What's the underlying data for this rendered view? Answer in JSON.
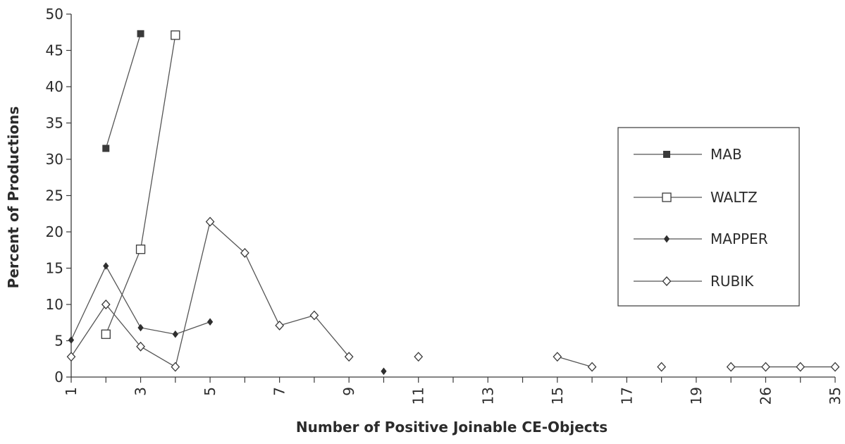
{
  "chart_data": {
    "type": "line",
    "xlabel": "Number of Positive Joinable CE-Objects",
    "ylabel": "Percent of Productions",
    "ylim": [
      0,
      50
    ],
    "yticks": [
      0,
      5,
      10,
      15,
      20,
      25,
      30,
      35,
      40,
      45,
      50
    ],
    "x_categories": [
      "1",
      "2",
      "3",
      "4",
      "5",
      "6",
      "7",
      "8",
      "9",
      "10",
      "11",
      "12",
      "13",
      "14",
      "15",
      "16",
      "17",
      "18",
      "19",
      "20",
      "26",
      "30",
      "35"
    ],
    "x_tick_labels_shown": [
      "1",
      "3",
      "5",
      "7",
      "9",
      "11",
      "13",
      "15",
      "17",
      "19",
      "26",
      "35"
    ],
    "grid": false,
    "legend_position": "right",
    "series": [
      {
        "name": "MAB",
        "marker": "filled-square",
        "color": "#555555",
        "segments": [
          [
            {
              "x": "2",
              "y": 31.5
            },
            {
              "x": "3",
              "y": 47.3
            }
          ]
        ]
      },
      {
        "name": "WALTZ",
        "marker": "open-square",
        "color": "#555555",
        "segments": [
          [
            {
              "x": "2",
              "y": 5.9
            },
            {
              "x": "3",
              "y": 17.6
            },
            {
              "x": "4",
              "y": 47.1
            }
          ]
        ]
      },
      {
        "name": "MAPPER",
        "marker": "filled-diamond",
        "color": "#555555",
        "segments": [
          [
            {
              "x": "1",
              "y": 5.1
            },
            {
              "x": "2",
              "y": 15.3
            },
            {
              "x": "3",
              "y": 6.8
            },
            {
              "x": "4",
              "y": 5.9
            },
            {
              "x": "5",
              "y": 7.6
            }
          ],
          [
            {
              "x": "10",
              "y": 0.8
            }
          ]
        ]
      },
      {
        "name": "RUBIK",
        "marker": "open-diamond",
        "color": "#555555",
        "segments": [
          [
            {
              "x": "1",
              "y": 2.8
            },
            {
              "x": "2",
              "y": 10.0
            },
            {
              "x": "3",
              "y": 4.2
            },
            {
              "x": "4",
              "y": 1.4
            },
            {
              "x": "5",
              "y": 21.4
            },
            {
              "x": "6",
              "y": 17.1
            },
            {
              "x": "7",
              "y": 7.1
            },
            {
              "x": "8",
              "y": 8.5
            },
            {
              "x": "9",
              "y": 2.8
            }
          ],
          [
            {
              "x": "11",
              "y": 2.8
            }
          ],
          [
            {
              "x": "15",
              "y": 2.8
            },
            {
              "x": "16",
              "y": 1.4
            }
          ],
          [
            {
              "x": "18",
              "y": 1.4
            }
          ],
          [
            {
              "x": "20",
              "y": 1.4
            },
            {
              "x": "26",
              "y": 1.4
            },
            {
              "x": "30",
              "y": 1.4
            },
            {
              "x": "35",
              "y": 1.4
            }
          ]
        ]
      }
    ]
  }
}
